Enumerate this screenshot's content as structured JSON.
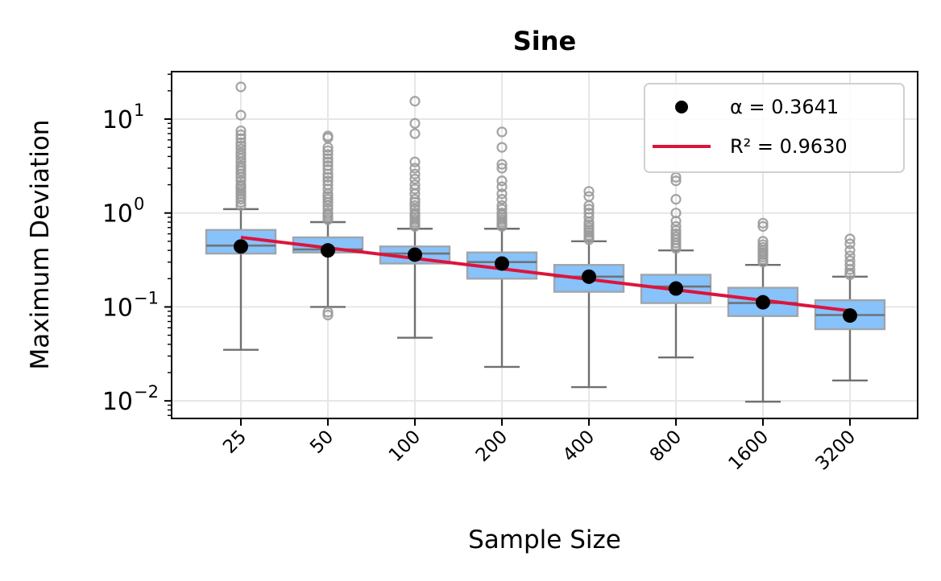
{
  "chart_data": {
    "type": "box",
    "title": "Sine",
    "xlabel": "Sample Size",
    "ylabel": "Maximum Deviation",
    "yscale": "log",
    "ylim": [
      0.0065,
      32
    ],
    "y_ticks": [
      {
        "base": "10",
        "exp": "1"
      },
      {
        "base": "10",
        "exp": "0"
      },
      {
        "base": "10",
        "exp": "−1"
      },
      {
        "base": "10",
        "exp": "−2"
      }
    ],
    "categories": [
      "25",
      "50",
      "100",
      "200",
      "400",
      "800",
      "1600",
      "3200"
    ],
    "boxes": [
      {
        "q1": 0.37,
        "median": 0.45,
        "q3": 0.66,
        "whisker_low": 0.035,
        "whisker_high": 1.1,
        "mean": 0.44,
        "outliers": [
          1.2,
          1.3,
          1.4,
          1.5,
          1.6,
          1.7,
          1.8,
          1.9,
          2.0,
          2.2,
          2.4,
          2.6,
          2.8,
          3.0,
          3.2,
          3.5,
          3.8,
          4.1,
          4.4,
          4.8,
          5.2,
          5.6,
          6.2,
          6.8,
          7.5,
          11.0,
          22.0
        ]
      },
      {
        "q1": 0.38,
        "median": 0.41,
        "q3": 0.55,
        "whisker_low": 0.1,
        "whisker_high": 0.8,
        "mean": 0.4,
        "outliers": [
          0.082,
          0.088,
          0.85,
          0.9,
          0.95,
          1.0,
          1.1,
          1.2,
          1.3,
          1.4,
          1.5,
          1.6,
          1.8,
          2.0,
          2.2,
          2.4,
          2.6,
          2.9,
          3.2,
          3.5,
          3.8,
          4.2,
          4.6,
          5.0,
          6.3,
          6.6
        ]
      },
      {
        "q1": 0.29,
        "median": 0.37,
        "q3": 0.44,
        "whisker_low": 0.047,
        "whisker_high": 0.68,
        "mean": 0.36,
        "outliers": [
          0.72,
          0.76,
          0.8,
          0.85,
          0.9,
          0.95,
          1.0,
          1.1,
          1.2,
          1.3,
          1.4,
          1.6,
          1.8,
          2.0,
          2.3,
          2.6,
          3.0,
          3.5,
          7.0,
          9.0,
          15.5
        ]
      },
      {
        "q1": 0.2,
        "median": 0.3,
        "q3": 0.38,
        "whisker_low": 0.023,
        "whisker_high": 0.68,
        "mean": 0.29,
        "outliers": [
          0.72,
          0.76,
          0.8,
          0.85,
          0.9,
          0.95,
          1.0,
          1.1,
          1.2,
          1.4,
          1.6,
          1.9,
          2.2,
          3.0,
          3.3,
          5.0,
          7.3
        ]
      },
      {
        "q1": 0.145,
        "median": 0.21,
        "q3": 0.28,
        "whisker_low": 0.014,
        "whisker_high": 0.5,
        "mean": 0.21,
        "outliers": [
          0.52,
          0.55,
          0.58,
          0.62,
          0.66,
          0.7,
          0.75,
          0.8,
          0.9,
          1.0,
          1.1,
          1.2,
          1.5,
          1.7
        ]
      },
      {
        "q1": 0.11,
        "median": 0.165,
        "q3": 0.22,
        "whisker_low": 0.029,
        "whisker_high": 0.4,
        "mean": 0.157,
        "outliers": [
          0.42,
          0.45,
          0.48,
          0.52,
          0.56,
          0.6,
          0.65,
          0.72,
          0.82,
          1.0,
          1.4,
          2.2,
          2.4
        ]
      },
      {
        "q1": 0.08,
        "median": 0.11,
        "q3": 0.16,
        "whisker_low": 0.0098,
        "whisker_high": 0.28,
        "mean": 0.112,
        "outliers": [
          0.3,
          0.32,
          0.34,
          0.36,
          0.38,
          0.4,
          0.43,
          0.46,
          0.5,
          0.72,
          0.78
        ]
      },
      {
        "q1": 0.058,
        "median": 0.082,
        "q3": 0.118,
        "whisker_low": 0.0165,
        "whisker_high": 0.21,
        "mean": 0.081,
        "outliers": [
          0.22,
          0.23,
          0.25,
          0.28,
          0.31,
          0.35,
          0.4,
          0.47,
          0.53
        ]
      }
    ],
    "fit_line": {
      "start": 0.55,
      "end": 0.091
    },
    "legend": {
      "placement": "top-right",
      "entries": [
        {
          "label": "α = 0.3641",
          "marker": "dot"
        },
        {
          "label": "R² = 0.9630",
          "marker": "line"
        }
      ]
    },
    "colors": {
      "box_fill": "#87c2fa",
      "box_edge": "#a0a5ab",
      "whisker": "#707070",
      "outlier": "#9a9a9a",
      "mean_dot": "#000000",
      "fit_line": "#dc143c",
      "grid": "#e6e6e6"
    }
  }
}
